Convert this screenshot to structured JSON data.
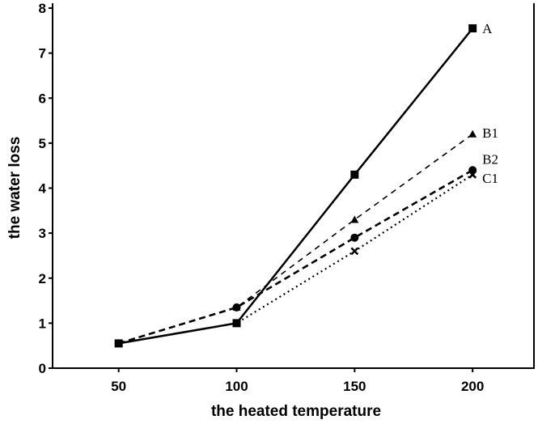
{
  "chart_data": {
    "type": "line",
    "title": "",
    "xlabel": "the heated temperature",
    "ylabel": "the water loss",
    "x": [
      50,
      100,
      150,
      200
    ],
    "xticks": [
      "50",
      "100",
      "150",
      "200"
    ],
    "yticks": [
      "0",
      "1",
      "2",
      "3",
      "4",
      "5",
      "6",
      "7",
      "8"
    ],
    "xlim": [
      22,
      226
    ],
    "ylim": [
      0,
      8
    ],
    "grid": false,
    "series": [
      {
        "name": "A",
        "values": [
          0.55,
          1.0,
          4.3,
          7.55
        ],
        "style": "solid",
        "marker": "square"
      },
      {
        "name": "B1",
        "values": [
          0.55,
          1.35,
          3.3,
          5.2
        ],
        "style": "dashed",
        "marker": "triangle"
      },
      {
        "name": "B2",
        "values": [
          0.55,
          1.35,
          2.9,
          4.4
        ],
        "style": "dashed-bold",
        "marker": "circle"
      },
      {
        "name": "C1",
        "values": [
          0.55,
          1.0,
          2.6,
          4.3
        ],
        "style": "dotted",
        "marker": "cross"
      }
    ]
  }
}
